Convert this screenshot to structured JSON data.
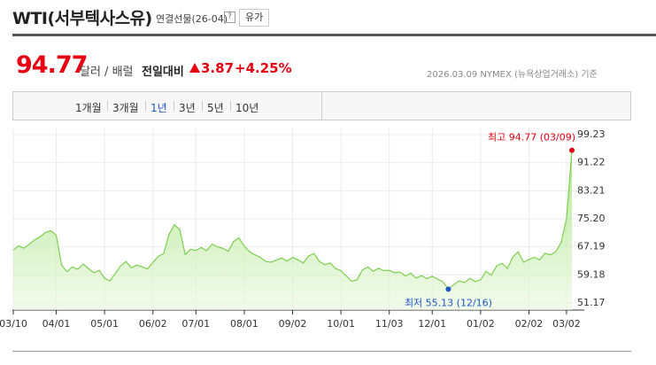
{
  "header": {
    "title": "WTI(서부텍사스유)",
    "subtitle": "연결선물(26-04)",
    "help": "?",
    "button": "유가"
  },
  "quote": {
    "price": "94.77",
    "unit": "달러 / 배럴",
    "compare_label": "전일대비",
    "change": "3.87",
    "change_pct": "+4.25%",
    "basis": "2026.03.09 NYMEX (뉴욕상업거래소) 기준"
  },
  "tabs": [
    "1개월",
    "3개월",
    "1년",
    "3년",
    "5년",
    "10년"
  ],
  "active_tab": "1년",
  "chart_data": {
    "type": "area",
    "color": "#7ccf4e",
    "grid": true,
    "categories": [
      "03/10",
      null,
      null,
      null,
      null,
      null,
      null,
      null,
      "04/01",
      null,
      null,
      null,
      null,
      null,
      null,
      null,
      null,
      "05/01",
      null,
      null,
      null,
      null,
      null,
      null,
      null,
      null,
      "06/02",
      null,
      null,
      null,
      null,
      null,
      null,
      null,
      "07/01",
      null,
      null,
      null,
      null,
      null,
      null,
      null,
      null,
      "08/01",
      null,
      null,
      null,
      null,
      null,
      null,
      null,
      null,
      "09/02",
      null,
      null,
      null,
      null,
      null,
      null,
      null,
      null,
      "10/01",
      null,
      null,
      null,
      null,
      null,
      null,
      null,
      null,
      "11/03",
      null,
      null,
      null,
      null,
      null,
      null,
      null,
      "12/01",
      null,
      null,
      null,
      null,
      null,
      null,
      null,
      null,
      "01/02",
      null,
      null,
      null,
      null,
      null,
      null,
      null,
      null,
      "02/02",
      null,
      null,
      null,
      null,
      null,
      null,
      "03/02",
      null
    ],
    "values": [
      66.3,
      67.5,
      66.8,
      68.0,
      69.2,
      70.1,
      71.3,
      71.8,
      70.5,
      62.0,
      60.1,
      61.5,
      60.8,
      62.3,
      61.0,
      59.8,
      60.5,
      58.2,
      57.5,
      59.6,
      61.8,
      63.0,
      61.2,
      62.0,
      61.5,
      60.9,
      62.8,
      64.5,
      65.3,
      70.8,
      73.5,
      72.1,
      65.0,
      66.5,
      66.2,
      67.0,
      66.1,
      68.0,
      67.2,
      66.8,
      65.9,
      68.7,
      69.8,
      67.4,
      65.8,
      64.9,
      64.2,
      63.0,
      62.8,
      63.5,
      64.0,
      63.1,
      64.2,
      63.5,
      62.6,
      64.6,
      65.3,
      63.0,
      62.1,
      62.6,
      61.0,
      60.4,
      58.9,
      57.4,
      57.8,
      60.6,
      61.5,
      60.2,
      61.1,
      60.4,
      60.5,
      59.8,
      60.0,
      58.9,
      59.7,
      58.3,
      59.0,
      58.1,
      58.8,
      58.0,
      57.2,
      55.13,
      56.4,
      57.5,
      57.0,
      58.2,
      57.3,
      57.8,
      60.2,
      59.1,
      61.8,
      62.5,
      61.0,
      64.3,
      65.8,
      62.8,
      63.6,
      64.2,
      63.5,
      65.4,
      64.9,
      65.8,
      68.5,
      75.1,
      94.77
    ],
    "max_label": "최고 94.77 (03/09)",
    "min_label": "최저 55.13 (12/16)",
    "ylim": [
      49.15,
      101.0
    ],
    "yticks": [
      51.17,
      59.18,
      67.19,
      {
        "value": 75.2,
        "label": "75.20"
      },
      83.21,
      91.22,
      99.23
    ]
  }
}
